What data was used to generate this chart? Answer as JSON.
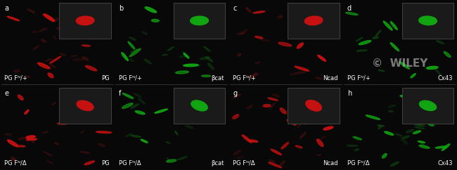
{
  "panels": [
    {
      "label": "a",
      "row": 0,
      "col": 0,
      "channel": "red",
      "left_text": "PG Fᴺ/+",
      "right_text": "PG",
      "inset_color": "red"
    },
    {
      "label": "b",
      "row": 0,
      "col": 1,
      "channel": "green",
      "left_text": "PG Fᴺ/+",
      "right_text": "βcat",
      "inset_color": "green"
    },
    {
      "label": "c",
      "row": 0,
      "col": 2,
      "channel": "red",
      "left_text": "PG Fᴺ/+",
      "right_text": "Ncad",
      "inset_color": "red"
    },
    {
      "label": "d",
      "row": 0,
      "col": 3,
      "channel": "green",
      "left_text": "PG Fᴺ/+",
      "right_text": "Cx43",
      "inset_color": "green"
    },
    {
      "label": "e",
      "row": 1,
      "col": 0,
      "channel": "red",
      "left_text": "PG Fᴺ/Δ",
      "right_text": "PG",
      "inset_color": "red"
    },
    {
      "label": "f",
      "row": 1,
      "col": 1,
      "channel": "green",
      "left_text": "PG Fᴺ/Δ",
      "right_text": "βcat",
      "inset_color": "green"
    },
    {
      "label": "g",
      "row": 1,
      "col": 2,
      "channel": "red",
      "left_text": "PG Fᴺ/Δ",
      "right_text": "Ncad",
      "inset_color": "red"
    },
    {
      "label": "h",
      "row": 1,
      "col": 3,
      "channel": "green",
      "left_text": "PG Fᴺ/Δ",
      "right_text": "Cx43",
      "inset_color": "green"
    }
  ],
  "bg_color": "#080808",
  "red_cell_color": "#cc1111",
  "red_cell_dim": "#551111",
  "green_cell_color": "#11aa11",
  "green_cell_dim": "#115511",
  "inset_bg": "#1a1a1a",
  "label_color": "#ffffff",
  "label_fontsize": 7,
  "wiley_text": "©  WILEY",
  "wiley_color": "#aaaaaa",
  "fig_width": 6.5,
  "fig_height": 2.42,
  "nrows": 2,
  "ncols": 4
}
